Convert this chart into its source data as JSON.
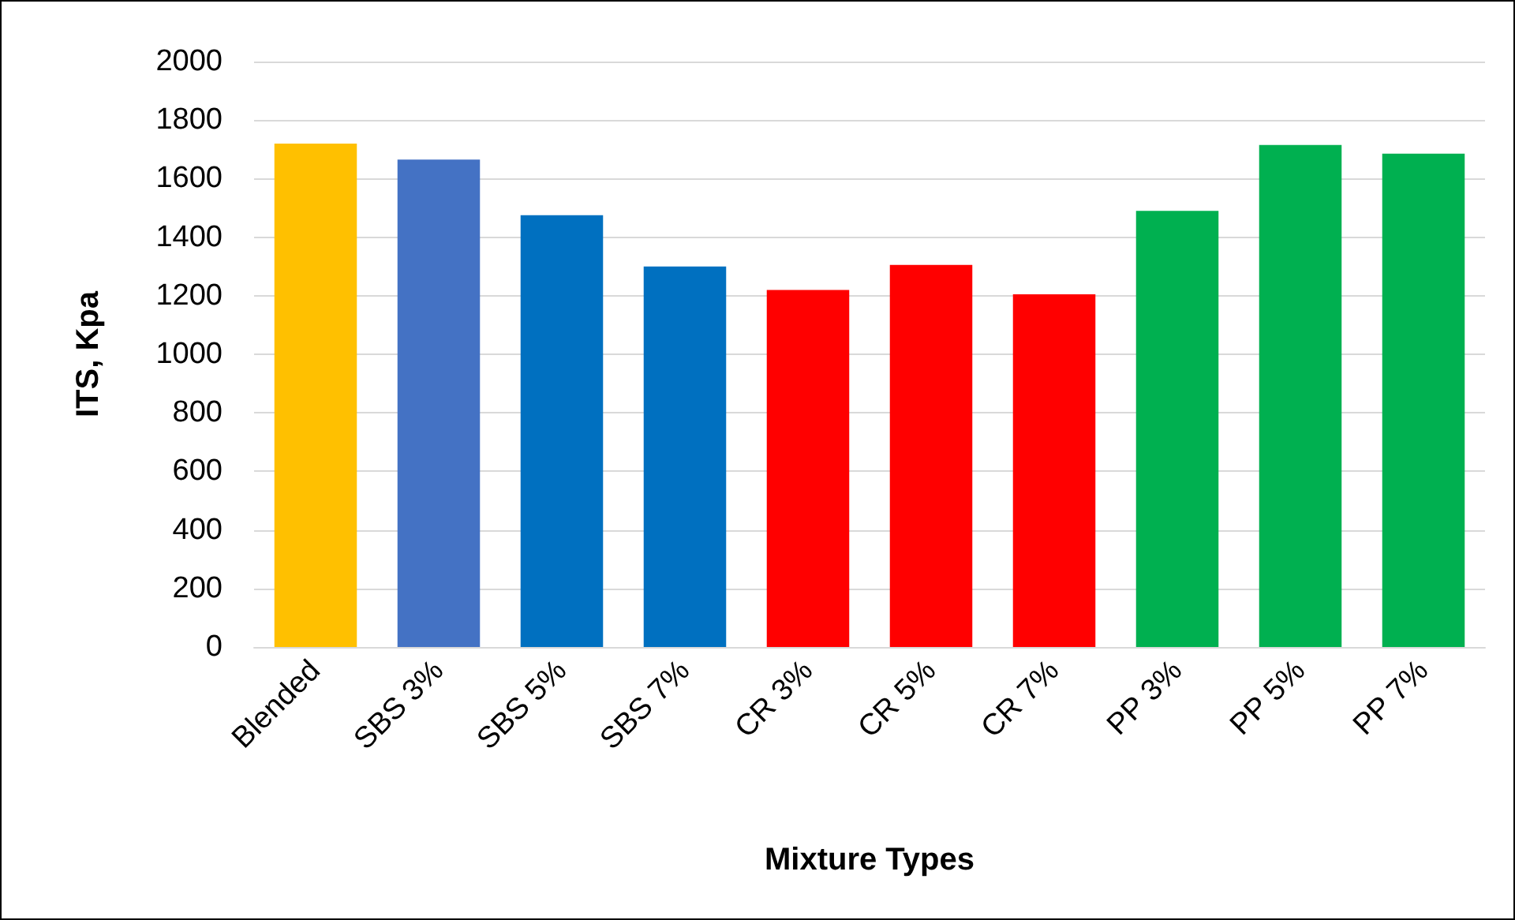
{
  "chart_data": {
    "type": "bar",
    "xlabel": "Mixture Types",
    "ylabel": "ITS, Kpa",
    "categories": [
      "Blended",
      "SBS 3%",
      "SBS 5%",
      "SBS 7%",
      "CR 3%",
      "CR 5%",
      "CR 7%",
      "PP 3%",
      "PP 5%",
      "PP 7%"
    ],
    "values": [
      1720,
      1665,
      1475,
      1300,
      1220,
      1305,
      1205,
      1490,
      1715,
      1685
    ],
    "colors": [
      "#ffc000",
      "#4472c4",
      "#0070c0",
      "#0070c0",
      "#ff0000",
      "#ff0000",
      "#ff0000",
      "#00b050",
      "#00b050",
      "#00b050"
    ],
    "ylim": [
      0,
      2000
    ],
    "yticks": [
      0,
      200,
      400,
      600,
      800,
      1000,
      1200,
      1400,
      1600,
      1800,
      2000
    ],
    "grid": "y"
  }
}
